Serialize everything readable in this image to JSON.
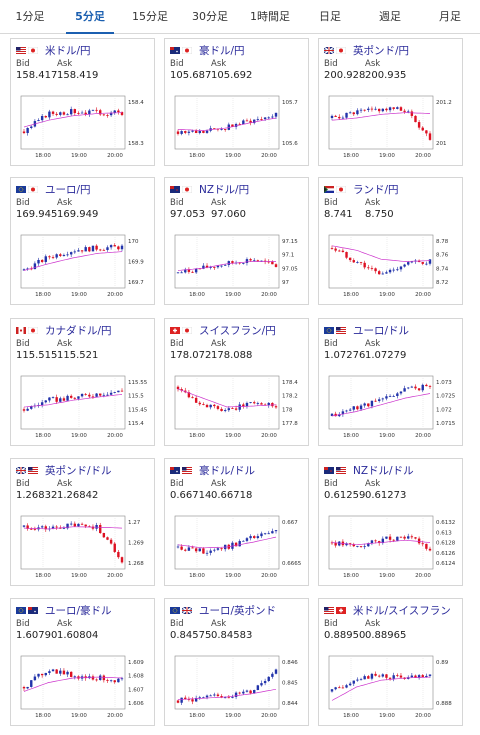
{
  "tabs": [
    {
      "label": "1分足",
      "active": false
    },
    {
      "label": "5分足",
      "active": true
    },
    {
      "label": "15分足",
      "active": false
    },
    {
      "label": "30分足",
      "active": false
    },
    {
      "label": "1時間足",
      "active": false
    },
    {
      "label": "日足",
      "active": false
    },
    {
      "label": "週足",
      "active": false
    },
    {
      "label": "月足",
      "active": false
    }
  ],
  "bid_label": "Bid",
  "ask_label": "Ask",
  "x_ticks": [
    "18:00",
    "19:00",
    "20:00"
  ],
  "colors": {
    "up": "#2233aa",
    "down": "#dd1122",
    "ma": "#cc33cc"
  },
  "cards": [
    {
      "name": "米ドル/円",
      "flags": [
        "us",
        "jp"
      ],
      "bid": "158.417",
      "ask": "158.419",
      "yticks": [
        "158.4",
        "158.3"
      ],
      "trend": [
        0.3,
        0.7,
        0.75,
        0.72,
        0.72
      ],
      "ma": [
        0.4,
        0.55,
        0.65,
        0.7,
        0.72
      ]
    },
    {
      "name": "豪ドル/円",
      "flags": [
        "au",
        "jp"
      ],
      "bid": "105.687",
      "ask": "105.692",
      "yticks": [
        "105.7",
        "105.6"
      ],
      "trend": [
        0.3,
        0.28,
        0.4,
        0.55,
        0.7
      ],
      "ma": [
        0.35,
        0.32,
        0.38,
        0.5,
        0.6
      ]
    },
    {
      "name": "英ポンド/円",
      "flags": [
        "gb",
        "jp"
      ],
      "bid": "200.928",
      "ask": "200.935",
      "yticks": [
        "201.2",
        "201"
      ],
      "trend": [
        0.6,
        0.72,
        0.8,
        0.78,
        0.15
      ],
      "ma": [
        0.55,
        0.6,
        0.68,
        0.72,
        0.7
      ]
    },
    {
      "name": "ユーロ/円",
      "flags": [
        "eu",
        "jp"
      ],
      "bid": "169.945",
      "ask": "169.949",
      "yticks": [
        "170",
        "169.9",
        "169.7"
      ],
      "trend": [
        0.3,
        0.6,
        0.75,
        0.8,
        0.82
      ],
      "ma": [
        0.3,
        0.45,
        0.58,
        0.68,
        0.72
      ]
    },
    {
      "name": "NZドル/円",
      "flags": [
        "nz",
        "jp"
      ],
      "bid": "97.053",
      "ask": "97.060",
      "yticks": [
        "97.15",
        "97.1",
        "97.05",
        "97"
      ],
      "trend": [
        0.25,
        0.35,
        0.45,
        0.55,
        0.4
      ],
      "ma": [
        0.3,
        0.35,
        0.45,
        0.5,
        0.5
      ]
    },
    {
      "name": "ランド/円",
      "flags": [
        "za",
        "jp"
      ],
      "bid": "8.741",
      "ask": "8.750",
      "yticks": [
        "8.78",
        "8.76",
        "8.74",
        "8.72"
      ],
      "trend": [
        0.8,
        0.5,
        0.2,
        0.45,
        0.5
      ],
      "ma": [
        0.85,
        0.75,
        0.55,
        0.5,
        0.52
      ]
    },
    {
      "name": "カナダドル/円",
      "flags": [
        "ca",
        "jp"
      ],
      "bid": "115.515",
      "ask": "115.521",
      "yticks": [
        "115.55",
        "115.5",
        "115.45",
        "115.4"
      ],
      "trend": [
        0.35,
        0.55,
        0.6,
        0.7,
        0.75
      ],
      "ma": [
        0.4,
        0.45,
        0.55,
        0.62,
        0.68
      ]
    },
    {
      "name": "スイスフラン/円",
      "flags": [
        "ch",
        "jp"
      ],
      "bid": "178.072",
      "ask": "178.088",
      "yticks": [
        "178.4",
        "178.2",
        "178",
        "177.8"
      ],
      "trend": [
        0.85,
        0.45,
        0.3,
        0.5,
        0.45
      ],
      "ma": [
        0.8,
        0.6,
        0.4,
        0.42,
        0.45
      ]
    },
    {
      "name": "ユーロ/ドル",
      "flags": [
        "eu",
        "us"
      ],
      "bid": "1.07276",
      "ask": "1.07279",
      "yticks": [
        "1.073",
        "1.0725",
        "1.072",
        "1.0715"
      ],
      "trend": [
        0.2,
        0.4,
        0.55,
        0.8,
        0.85
      ],
      "ma": [
        0.2,
        0.3,
        0.45,
        0.6,
        0.7
      ]
    },
    {
      "name": "英ポンド/ドル",
      "flags": [
        "gb",
        "us"
      ],
      "bid": "1.26832",
      "ask": "1.26842",
      "yticks": [
        "1.27",
        "1.269",
        "1.268"
      ],
      "trend": [
        0.85,
        0.8,
        0.88,
        0.85,
        0.1
      ],
      "ma": [
        0.82,
        0.8,
        0.85,
        0.84,
        0.82
      ]
    },
    {
      "name": "豪ドル/ドル",
      "flags": [
        "au",
        "us"
      ],
      "bid": "0.66714",
      "ask": "0.66718",
      "yticks": [
        "0.667",
        "0.6665"
      ],
      "trend": [
        0.4,
        0.3,
        0.4,
        0.6,
        0.75
      ],
      "ma": [
        0.45,
        0.38,
        0.4,
        0.5,
        0.62
      ]
    },
    {
      "name": "NZドル/ドル",
      "flags": [
        "nz",
        "us"
      ],
      "bid": "0.61259",
      "ask": "0.61273",
      "yticks": [
        "0.6132",
        "0.613",
        "0.6128",
        "0.6126",
        "0.6124"
      ],
      "trend": [
        0.5,
        0.4,
        0.55,
        0.65,
        0.35
      ],
      "ma": [
        0.5,
        0.45,
        0.5,
        0.55,
        0.5
      ]
    },
    {
      "name": "ユーロ/豪ドル",
      "flags": [
        "eu",
        "au"
      ],
      "bid": "1.60790",
      "ask": "1.60804",
      "yticks": [
        "1.609",
        "1.608",
        "1.607",
        "1.606"
      ],
      "trend": [
        0.4,
        0.8,
        0.65,
        0.6,
        0.55
      ],
      "ma": [
        0.3,
        0.5,
        0.6,
        0.62,
        0.6
      ]
    },
    {
      "name": "ユーロ/英ポンド",
      "flags": [
        "eu",
        "gb"
      ],
      "bid": "0.84575",
      "ask": "0.84583",
      "yticks": [
        "0.846",
        "0.845",
        "0.844"
      ],
      "trend": [
        0.1,
        0.15,
        0.2,
        0.3,
        0.8
      ],
      "ma": [
        0.12,
        0.15,
        0.18,
        0.25,
        0.35
      ]
    },
    {
      "name": "米ドル/スイスフラン",
      "flags": [
        "us",
        "ch"
      ],
      "bid": "0.88950",
      "ask": "0.88965",
      "yticks": [
        "0.89",
        "0.888"
      ],
      "trend": [
        0.3,
        0.6,
        0.65,
        0.6,
        0.62
      ],
      "ma": [
        0.1,
        0.4,
        0.55,
        0.6,
        0.62
      ]
    }
  ]
}
